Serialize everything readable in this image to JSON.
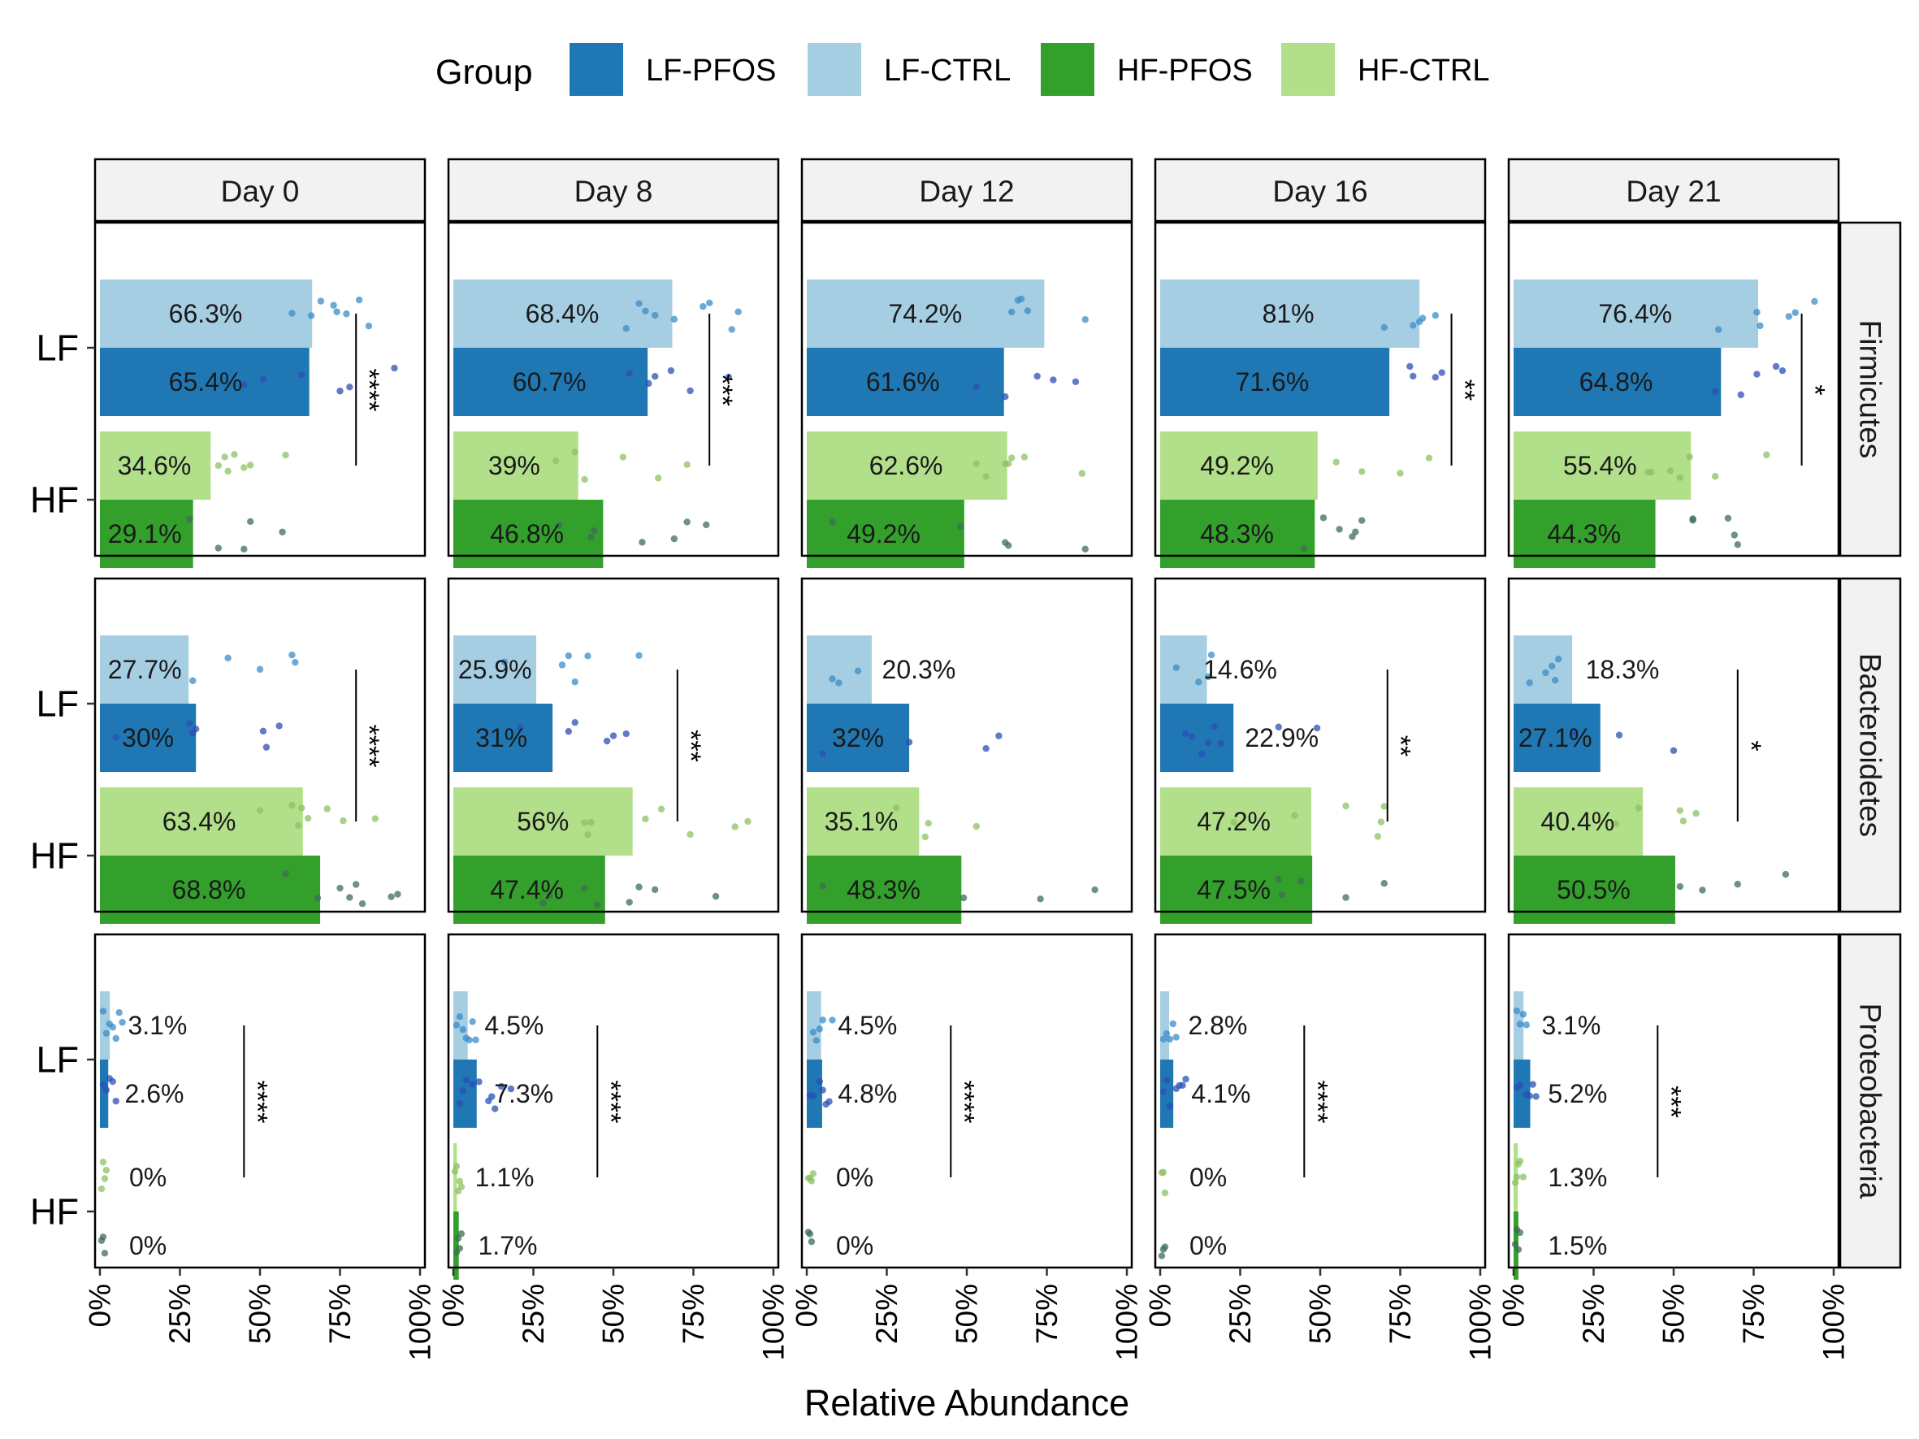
{
  "chart_data": {
    "type": "bar",
    "orientation": "horizontal",
    "legend": {
      "title": "Group",
      "position": "top",
      "entries": [
        {
          "name": "LF-PFOS",
          "color": "#1f78b4"
        },
        {
          "name": "LF-CTRL",
          "color": "#a6cee3"
        },
        {
          "name": "HF-PFOS",
          "color": "#33a02c"
        },
        {
          "name": "HF-CTRL",
          "color": "#b2df8a"
        }
      ]
    },
    "xlabel": "Relative Abundance",
    "xlim": [
      0,
      100
    ],
    "x_ticks": [
      "0%",
      "25%",
      "50%",
      "75%",
      "100%"
    ],
    "y_categories": [
      "LF",
      "HF"
    ],
    "columns": [
      "Day 0",
      "Day 8",
      "Day 12",
      "Day 16",
      "Day 21"
    ],
    "rows": [
      "Firmicutes",
      "Bacteroidetes",
      "Proteobacteria"
    ],
    "bar_order": [
      "LF-CTRL",
      "LF-PFOS",
      "HF-CTRL",
      "HF-PFOS"
    ],
    "values": {
      "Firmicutes": [
        [
          66.3,
          65.4,
          34.6,
          29.1
        ],
        [
          68.4,
          60.7,
          39,
          46.8
        ],
        [
          74.2,
          61.6,
          62.6,
          49.2
        ],
        [
          81,
          71.6,
          49.2,
          48.3
        ],
        [
          76.4,
          64.8,
          55.4,
          44.3
        ]
      ],
      "Bacteroidetes": [
        [
          27.7,
          30,
          63.4,
          68.8
        ],
        [
          25.9,
          31,
          56,
          47.4
        ],
        [
          20.3,
          32,
          35.1,
          48.3
        ],
        [
          14.6,
          22.9,
          47.2,
          47.5
        ],
        [
          18.3,
          27.1,
          40.4,
          50.5
        ]
      ],
      "Proteobacteria": [
        [
          3.1,
          2.6,
          0,
          0
        ],
        [
          4.5,
          7.3,
          1.1,
          1.7
        ],
        [
          4.5,
          4.8,
          0,
          0
        ],
        [
          2.8,
          4.1,
          0,
          0
        ],
        [
          3.1,
          5.2,
          1.3,
          1.5
        ]
      ]
    },
    "labels": {
      "Firmicutes": [
        [
          "66.3%",
          "65.4%",
          "34.6%",
          "29.1%"
        ],
        [
          "68.4%",
          "60.7%",
          "39%",
          "46.8%"
        ],
        [
          "74.2%",
          "61.6%",
          "62.6%",
          "49.2%"
        ],
        [
          "81%",
          "71.6%",
          "49.2%",
          "48.3%"
        ],
        [
          "76.4%",
          "64.8%",
          "55.4%",
          "44.3%"
        ]
      ],
      "Bacteroidetes": [
        [
          "27.7%",
          "30%",
          "63.4%",
          "68.8%"
        ],
        [
          "25.9%",
          "31%",
          "56%",
          "47.4%"
        ],
        [
          "20.3%",
          "32%",
          "35.1%",
          "48.3%"
        ],
        [
          "14.6%",
          "22.9%",
          "47.2%",
          "47.5%"
        ],
        [
          "18.3%",
          "27.1%",
          "40.4%",
          "50.5%"
        ]
      ],
      "Proteobacteria": [
        [
          "3.1%",
          "2.6%",
          "0%",
          "0%"
        ],
        [
          "4.5%",
          "7.3%",
          "1.1%",
          "1.7%"
        ],
        [
          "4.5%",
          "4.8%",
          "0%",
          "0%"
        ],
        [
          "2.8%",
          "4.1%",
          "0%",
          "0%"
        ],
        [
          "3.1%",
          "5.2%",
          "1.3%",
          "1.5%"
        ]
      ]
    },
    "label_positions": {
      "Firmicutes": [
        [
          33,
          33,
          17,
          14
        ],
        [
          34,
          30,
          19,
          23
        ],
        [
          37,
          30,
          31,
          24
        ],
        [
          40,
          35,
          24,
          24
        ],
        [
          38,
          32,
          27,
          22
        ]
      ],
      "Bacteroidetes": [
        [
          14,
          15,
          31,
          34
        ],
        [
          13,
          15,
          28,
          23
        ],
        [
          35,
          16,
          17,
          24
        ],
        [
          25,
          38,
          23,
          23
        ],
        [
          34,
          13,
          20,
          25
        ]
      ],
      "Proteobacteria": [
        [
          18,
          17,
          15,
          15
        ],
        [
          19,
          22,
          16,
          17
        ],
        [
          19,
          19,
          15,
          15
        ],
        [
          18,
          19,
          15,
          15
        ],
        [
          18,
          20,
          20,
          20
        ]
      ]
    },
    "points": {
      "Firmicutes": [
        [
          [
            60,
            66,
            69,
            73,
            74,
            77,
            81,
            84
          ],
          [
            45,
            51,
            63,
            75,
            78,
            92
          ],
          [
            37,
            39,
            40,
            42,
            45,
            47,
            58
          ],
          [
            28,
            37,
            45,
            47,
            57
          ]
        ],
        [
          [
            54,
            58,
            60,
            63,
            69,
            78,
            80,
            87,
            89
          ],
          [
            55,
            61,
            63,
            68,
            74,
            86
          ],
          [
            32,
            38,
            41,
            53,
            64,
            73
          ],
          [
            33,
            43,
            44,
            59,
            69,
            73,
            79
          ]
        ],
        [
          [
            64,
            66,
            67,
            69,
            87
          ],
          [
            53,
            62,
            72,
            77,
            84
          ],
          [
            53,
            56,
            62,
            63,
            64,
            68,
            86
          ],
          [
            8,
            48,
            62,
            63,
            87
          ]
        ],
        [
          [
            70,
            79,
            81,
            82,
            86
          ],
          [
            78,
            79,
            86,
            88
          ],
          [
            55,
            63,
            75,
            84
          ],
          [
            45,
            51,
            56,
            60,
            61,
            63
          ]
        ],
        [
          [
            64,
            76,
            77,
            86,
            88,
            94
          ],
          [
            63,
            71,
            76,
            82,
            84
          ],
          [
            42,
            43,
            49,
            52,
            55,
            63,
            79
          ],
          [
            56,
            56,
            67,
            69,
            70
          ]
        ]
      ],
      "Bacteroidetes": [
        [
          [
            29,
            40,
            50,
            60,
            61
          ],
          [
            5,
            28,
            29,
            30,
            51,
            52,
            56
          ],
          [
            50,
            60,
            62,
            63,
            65,
            71,
            76,
            86
          ],
          [
            58,
            68,
            75,
            78,
            80,
            82,
            91,
            93
          ]
        ],
        [
          [
            16,
            34,
            36,
            38,
            42,
            58
          ],
          [
            21,
            36,
            38,
            48,
            50,
            54
          ],
          [
            41,
            42,
            43,
            60,
            65,
            74,
            88,
            92
          ],
          [
            28,
            30,
            41,
            45,
            55,
            58,
            63,
            82
          ]
        ],
        [
          [
            8,
            10,
            16
          ],
          [
            5,
            32,
            56,
            60
          ],
          [
            28,
            37,
            38,
            53
          ],
          [
            5,
            49,
            73,
            90
          ]
        ],
        [
          [
            5,
            12,
            15,
            16
          ],
          [
            8,
            10,
            13,
            15,
            17,
            19,
            37,
            49
          ],
          [
            23,
            42,
            58,
            68,
            69,
            70
          ],
          [
            24,
            37,
            38,
            44,
            58,
            70
          ]
        ],
        [
          [
            5,
            10,
            12,
            13,
            14
          ],
          [
            19,
            33,
            50
          ],
          [
            32,
            39,
            52,
            53,
            57
          ],
          [
            52,
            59,
            70,
            85
          ]
        ]
      ],
      "Proteobacteria": [
        [
          [
            1,
            2,
            3,
            4,
            5,
            6,
            7
          ],
          [
            1,
            2,
            3,
            4,
            5
          ],
          [
            0.5,
            1,
            1.5,
            2
          ],
          [
            0.5,
            1,
            1.5
          ]
        ],
        [
          [
            1,
            2,
            3,
            4,
            5,
            6,
            7
          ],
          [
            2,
            3,
            4,
            6,
            8,
            11,
            12,
            13,
            15,
            18
          ],
          [
            0.5,
            1,
            1.5,
            2,
            2.5
          ],
          [
            1,
            1.5,
            2,
            2.5
          ]
        ],
        [
          [
            2,
            3,
            4,
            5,
            8
          ],
          [
            1,
            2,
            4,
            5,
            6,
            7
          ],
          [
            0.5,
            1,
            1.5,
            2
          ],
          [
            0.5,
            1,
            1.5
          ]
        ],
        [
          [
            1,
            2,
            3,
            4,
            5
          ],
          [
            1,
            2,
            3,
            5,
            6,
            7,
            8
          ],
          [
            0.5,
            1,
            1.5
          ],
          [
            0.5,
            1,
            1.5
          ]
        ],
        [
          [
            1,
            2,
            3,
            4
          ],
          [
            1,
            2,
            4,
            5,
            6,
            7
          ],
          [
            0.5,
            1,
            1.5,
            2,
            3
          ],
          [
            0.5,
            1,
            1.5,
            2
          ]
        ]
      ]
    },
    "point_colors": [
      "#3a8cc8",
      "#2c4fb5",
      "#8cc263",
      "#3e6e56"
    ],
    "significance": {
      "Firmicutes": [
        {
          "label": "****",
          "x": 80
        },
        {
          "label": "***",
          "x": 80
        },
        {
          "label": "",
          "x": 0
        },
        {
          "label": "**",
          "x": 91
        },
        {
          "label": "*",
          "x": 90
        }
      ],
      "Bacteroidetes": [
        {
          "label": "****",
          "x": 80
        },
        {
          "label": "***",
          "x": 70
        },
        {
          "label": "",
          "x": 0
        },
        {
          "label": "**",
          "x": 71
        },
        {
          "label": "*",
          "x": 70
        }
      ],
      "Proteobacteria": [
        {
          "label": "****",
          "x": 45
        },
        {
          "label": "****",
          "x": 45
        },
        {
          "label": "****",
          "x": 45
        },
        {
          "label": "****",
          "x": 45
        },
        {
          "label": "***",
          "x": 45
        }
      ]
    }
  }
}
